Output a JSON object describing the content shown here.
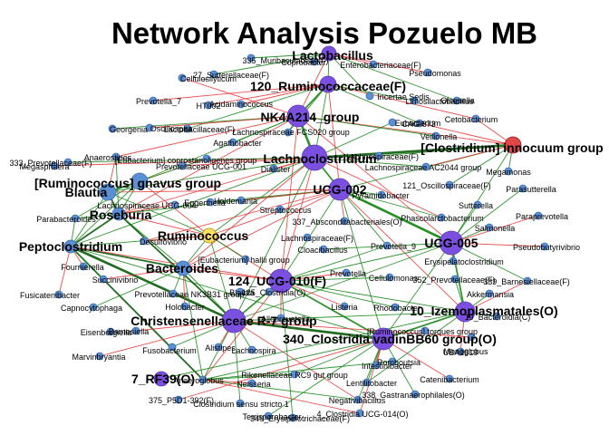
{
  "title": "Network Analysis Pozuelo MB",
  "colors": {
    "hub": "#7b4fe0",
    "hub_stroke": "#5a3bb0",
    "minor": "#5b8fd6",
    "highlight": "#ffe066",
    "red_node": "#e04848",
    "pos_edge": "#1c8a1c",
    "pos_edge_strong": "#0b5d0b",
    "neg_edge": "#e53030"
  },
  "nodes": [
    {
      "label": "Lactobacillus",
      "type": "hub",
      "big": true
    },
    {
      "label": "Coprobacter",
      "type": "minor",
      "big": false
    },
    {
      "label": "335_Muribaculaceae(F)",
      "type": "minor",
      "big": false
    },
    {
      "label": "Enterobacteriaceae(F)",
      "type": "minor",
      "big": false
    },
    {
      "label": "Cellulosilyticum",
      "type": "minor",
      "big": false
    },
    {
      "label": "27_Sutterellaceae(F)",
      "type": "minor",
      "big": false
    },
    {
      "label": "Pseudomonas",
      "type": "minor",
      "big": false
    },
    {
      "label": "120_Ruminococcaceae(F)",
      "type": "hub",
      "big": true
    },
    {
      "label": "Incertae Sedis",
      "type": "minor",
      "big": false
    },
    {
      "label": "Limosilactobacillus",
      "type": "minor",
      "big": false
    },
    {
      "label": "Olsenella",
      "type": "minor",
      "big": false
    },
    {
      "label": "Prevotella_7",
      "type": "minor",
      "big": false
    },
    {
      "label": "Acidaminococcus",
      "type": "minor",
      "big": false
    },
    {
      "label": "HT002",
      "type": "minor",
      "big": false
    },
    {
      "label": "NK4A214_group",
      "type": "hub",
      "big": true
    },
    {
      "label": "Eubacterium",
      "type": "minor",
      "big": false
    },
    {
      "label": "CAG-873",
      "type": "minor",
      "big": false
    },
    {
      "label": "Cetobacterium",
      "type": "minor",
      "big": false
    },
    {
      "label": "Georgenia",
      "type": "minor",
      "big": false
    },
    {
      "label": "Oscillospira",
      "type": "minor",
      "big": false
    },
    {
      "label": "Lactobacillaceae(F)",
      "type": "minor",
      "big": false
    },
    {
      "label": "Lachnospiraceae FCS020 group",
      "type": "minor",
      "big": false
    },
    {
      "label": "Veillonella",
      "type": "minor",
      "big": false
    },
    {
      "label": "[Clostridium] innocuum group",
      "type": "red",
      "big": true
    },
    {
      "label": "Agathobacter",
      "type": "minor",
      "big": false
    },
    {
      "label": "Anaerostipes",
      "type": "minor",
      "big": false
    },
    {
      "label": "333_Prevotellaceae(F)",
      "type": "minor",
      "big": false
    },
    {
      "label": "[Eubacterium] coprostanoligenes group",
      "type": "minor",
      "big": false
    },
    {
      "label": "Lachnoclostridium",
      "type": "hub",
      "big": true
    },
    {
      "label": "Lachnospiraceae(F)",
      "type": "minor",
      "big": false
    },
    {
      "label": "Megasphaera",
      "type": "minor",
      "big": false
    },
    {
      "label": "Prevotellaceae UCG-001",
      "type": "minor",
      "big": false
    },
    {
      "label": "Dialister",
      "type": "minor",
      "big": false
    },
    {
      "label": "Lachnospiraceae AC2044 group",
      "type": "minor",
      "big": false
    },
    {
      "label": "Megamonas",
      "type": "minor",
      "big": false
    },
    {
      "label": "[Ruminococcus] gnavus group",
      "type": "minor",
      "big": true
    },
    {
      "label": "UCG-002",
      "type": "hub",
      "big": true
    },
    {
      "label": "121_Oscillospiraceae(F)",
      "type": "minor",
      "big": false
    },
    {
      "label": "Parasutterella",
      "type": "minor",
      "big": false
    },
    {
      "label": "Blautia",
      "type": "minor",
      "big": true
    },
    {
      "label": "Pyramidobacter",
      "type": "minor",
      "big": false
    },
    {
      "label": "Lachnospiraceae UCG-004",
      "type": "minor",
      "big": false
    },
    {
      "label": "Eggerthella",
      "type": "minor",
      "big": false
    },
    {
      "label": "Holdemania",
      "type": "minor",
      "big": false
    },
    {
      "label": "Sutterella",
      "type": "minor",
      "big": false
    },
    {
      "label": "Roseburia",
      "type": "minor",
      "big": true
    },
    {
      "label": "Streptococcus",
      "type": "minor",
      "big": false
    },
    {
      "label": "Phascolarctobacterium",
      "type": "minor",
      "big": false
    },
    {
      "label": "Paraprevotella",
      "type": "minor",
      "big": false
    },
    {
      "label": "Parabacteroides",
      "type": "minor",
      "big": false
    },
    {
      "label": "337_Absconditabacteriales(O)",
      "type": "minor",
      "big": false
    },
    {
      "label": "Salmonella",
      "type": "minor",
      "big": false
    },
    {
      "label": "Ruminococcus",
      "type": "highlight",
      "big": true
    },
    {
      "label": "Lachnospiraceae(F)",
      "type": "minor",
      "big": false
    },
    {
      "label": "UCG-005",
      "type": "hub",
      "big": true
    },
    {
      "label": "Peptoclostridium",
      "type": "minor",
      "big": true
    },
    {
      "label": "Desulfovibrio",
      "type": "minor",
      "big": false
    },
    {
      "label": "Cloacibacillus",
      "type": "minor",
      "big": false
    },
    {
      "label": "Prevotella_9",
      "type": "minor",
      "big": false
    },
    {
      "label": "Pseudobutyrivibrio",
      "type": "minor",
      "big": false
    },
    {
      "label": "Erysipelatoclostridium",
      "type": "minor",
      "big": false
    },
    {
      "label": "[Eubacterium] hallii group",
      "type": "minor",
      "big": false
    },
    {
      "label": "Fournierella",
      "type": "minor",
      "big": false
    },
    {
      "label": "Bacteroides",
      "type": "minor",
      "big": true
    },
    {
      "label": "Prevotella",
      "type": "minor",
      "big": false
    },
    {
      "label": "Succinivibrio",
      "type": "minor",
      "big": false
    },
    {
      "label": "Cellulomonas",
      "type": "minor",
      "big": false
    },
    {
      "label": "352_Prevotellaceae(F)",
      "type": "minor",
      "big": false
    },
    {
      "label": "339_Barnesiellaceae(F)",
      "type": "minor",
      "big": false
    },
    {
      "label": "124_UCG-010(F)",
      "type": "hub",
      "big": true
    },
    {
      "label": "Fusicatenibacter",
      "type": "minor",
      "big": false
    },
    {
      "label": "Prevotellaceae NK3B31 group",
      "type": "minor",
      "big": false
    },
    {
      "label": "Akkermansia",
      "type": "minor",
      "big": false
    },
    {
      "label": "Capnocytophaga",
      "type": "minor",
      "big": false
    },
    {
      "label": "Holobacter",
      "type": "minor",
      "big": false
    },
    {
      "label": "125_Clostridia(O)",
      "type": "minor",
      "big": false
    },
    {
      "label": "Listeria",
      "type": "minor",
      "big": false
    },
    {
      "label": "Blautia",
      "type": "minor",
      "big": false
    },
    {
      "label": "10_Izemoplasmatales(O)",
      "type": "hub",
      "big": true
    },
    {
      "label": "Eisenbergiella",
      "type": "minor",
      "big": false
    },
    {
      "label": "Barnesiella",
      "type": "minor",
      "big": false
    },
    {
      "label": "Alloprevotella",
      "type": "minor",
      "big": false
    },
    {
      "label": "Christensenellaceae R-7 group",
      "type": "hub",
      "big": true
    },
    {
      "label": "[Ruminococcus] torques group",
      "type": "minor",
      "big": false
    },
    {
      "label": "Rhodobacter",
      "type": "minor",
      "big": false
    },
    {
      "label": "19_Bacteroidia(C)",
      "type": "minor",
      "big": false
    },
    {
      "label": "340_Clostridia vadinBB60 group(O)",
      "type": "hub",
      "big": true
    },
    {
      "label": "Marvinbryantia",
      "type": "minor",
      "big": false
    },
    {
      "label": "Fusobacterium",
      "type": "minor",
      "big": false
    },
    {
      "label": "Alistipes",
      "type": "minor",
      "big": false
    },
    {
      "label": "Lachnospira",
      "type": "minor",
      "big": false
    },
    {
      "label": "Monoglobus",
      "type": "minor",
      "big": false
    },
    {
      "label": "UBA1819",
      "type": "minor",
      "big": false
    },
    {
      "label": "7_RF39(O)",
      "type": "hub",
      "big": true
    },
    {
      "label": "Anaeroglobus",
      "type": "minor",
      "big": false
    },
    {
      "label": "Romboutsia",
      "type": "minor",
      "big": false
    },
    {
      "label": "Intestinibacter",
      "type": "minor",
      "big": false
    },
    {
      "label": "Rikenellaceae RC9 gut group",
      "type": "minor",
      "big": false
    },
    {
      "label": "Catenibacterium",
      "type": "minor",
      "big": false
    },
    {
      "label": "Neisseria",
      "type": "minor",
      "big": false
    },
    {
      "label": "Lentilitobacter",
      "type": "minor",
      "big": false
    },
    {
      "label": "375_P5D1-392(F)",
      "type": "minor",
      "big": false
    },
    {
      "label": "338_Gastranaerophilales(O)",
      "type": "minor",
      "big": false
    },
    {
      "label": "Clostridium sensu stricto 1",
      "type": "minor",
      "big": false
    },
    {
      "label": "Negativibacillus",
      "type": "minor",
      "big": false
    },
    {
      "label": "Terrisporobacter",
      "type": "minor",
      "big": false
    },
    {
      "label": "4_Clostridia UCG-014(O)",
      "type": "minor",
      "big": false
    },
    {
      "label": "349_Erysipelotrichaceae(F)",
      "type": "minor",
      "big": false
    }
  ]
}
